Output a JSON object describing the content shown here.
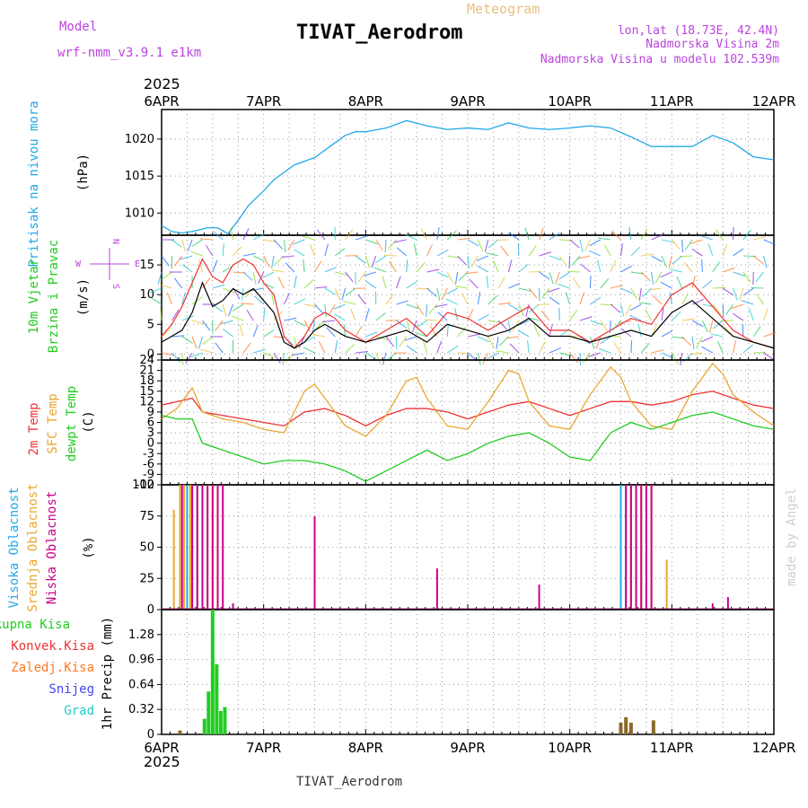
{
  "header": {
    "model_label": "Model",
    "model_name": "wrf-nmm_v3.9.1 e1km",
    "title": "TIVAT_Aerodrom",
    "subtitle": "Meteogram",
    "lonlat": "lon,lat (18.73E, 42.4N)",
    "elevation": "Nadmorska Visina 2m",
    "elevation_model": "Nadmorska Visina u modelu 102.539m",
    "footer": "TIVAT_Aerodrom",
    "credit": "made by Angel",
    "year": "2025"
  },
  "colors": {
    "pressure": "#22a8e8",
    "wind_speed": "#000000",
    "wind_gust": "#ee3333",
    "temp_2m": "#ee3333",
    "temp_sfc": "#e8a830",
    "temp_dew": "#22cc22",
    "cloud_high": "#22a8e8",
    "cloud_mid": "#e8a830",
    "cloud_low": "#cc0088",
    "precip_total": "#22cc22",
    "precip_conv": "#ee3333",
    "precip_ice": "#ff7722",
    "precip_snow": "#4444ee",
    "precip_grad": "#22cccc",
    "header_purple": "#bb44dd",
    "title": "#000000",
    "meteogram": "#e8c080"
  },
  "chart_data": [
    {
      "id": "pressure",
      "type": "line",
      "ylabel_parts": [
        "Pritisak na nivou mora",
        "(hPa)"
      ],
      "x_categories": [
        "6APR",
        "7APR",
        "8APR",
        "9APR",
        "10APR",
        "11APR",
        "12APR"
      ],
      "yticks": [
        1010,
        1015,
        1020
      ],
      "ylim": [
        1007,
        1024
      ],
      "grid": true,
      "series": [
        {
          "x": [
            0,
            0.1,
            0.2,
            0.3,
            0.45,
            0.55,
            0.65,
            0.75,
            0.85,
            1.0,
            1.1,
            1.2,
            1.3,
            1.4,
            1.5,
            1.6,
            1.7,
            1.8,
            1.9,
            2.0,
            2.2,
            2.4,
            2.6,
            2.8,
            3.0,
            3.2,
            3.4,
            3.6,
            3.8,
            4.0,
            4.2,
            4.4,
            4.6,
            4.8,
            5.0,
            5.2,
            5.4,
            5.6,
            5.8,
            6.0
          ],
          "values": [
            1008.3,
            1007.5,
            1007.3,
            1007.5,
            1008.0,
            1008.0,
            1007.2,
            1009.0,
            1011.0,
            1013.0,
            1014.5,
            1015.5,
            1016.5,
            1017.0,
            1017.5,
            1018.5,
            1019.5,
            1020.5,
            1021.0,
            1021.0,
            1021.5,
            1022.5,
            1021.8,
            1021.3,
            1021.5,
            1021.3,
            1022.2,
            1021.5,
            1021.3,
            1021.5,
            1021.8,
            1021.5,
            1020.3,
            1019.0,
            1019.0,
            1019.0,
            1020.5,
            1019.5,
            1017.6,
            1017.2
          ]
        }
      ]
    },
    {
      "id": "wind",
      "type": "line",
      "ylabel_parts": [
        "10m Vjetar",
        "Brzina i Pravac",
        "(m/s)"
      ],
      "compass": {
        "n": "N",
        "w": "W",
        "e": "E",
        "s": "S"
      },
      "x_categories": [
        "6APR",
        "7APR",
        "8APR",
        "9APR",
        "10APR",
        "11APR",
        "12APR"
      ],
      "yticks": [
        0,
        5,
        10,
        15
      ],
      "ylim": [
        -1,
        20
      ],
      "grid": true,
      "series": [
        {
          "name": "speed",
          "x": [
            0,
            0.1,
            0.2,
            0.3,
            0.4,
            0.5,
            0.6,
            0.7,
            0.8,
            0.9,
            1.0,
            1.1,
            1.2,
            1.3,
            1.4,
            1.5,
            1.6,
            1.7,
            1.8,
            2.0,
            2.2,
            2.4,
            2.6,
            2.8,
            3.0,
            3.2,
            3.4,
            3.6,
            3.8,
            4.0,
            4.2,
            4.4,
            4.6,
            4.8,
            5.0,
            5.2,
            5.4,
            5.6,
            5.8,
            6.0
          ],
          "values": [
            2,
            3,
            4,
            7,
            12,
            8,
            9,
            11,
            10,
            11,
            9,
            7,
            2,
            1,
            2,
            4,
            5,
            4,
            3,
            2,
            3,
            4,
            2,
            5,
            4,
            3,
            4,
            6,
            3,
            3,
            2,
            3,
            4,
            3,
            7,
            9,
            6,
            3,
            2,
            1
          ]
        },
        {
          "name": "gust",
          "x": [
            0,
            0.1,
            0.2,
            0.3,
            0.4,
            0.5,
            0.6,
            0.7,
            0.8,
            0.9,
            1.0,
            1.1,
            1.2,
            1.3,
            1.4,
            1.5,
            1.6,
            1.7,
            1.8,
            2.0,
            2.2,
            2.4,
            2.6,
            2.8,
            3.0,
            3.2,
            3.4,
            3.6,
            3.8,
            4.0,
            4.2,
            4.4,
            4.6,
            4.8,
            5.0,
            5.2,
            5.4,
            5.6,
            5.8,
            6.0
          ],
          "values": [
            3,
            5,
            8,
            12,
            16,
            13,
            12,
            15,
            16,
            15,
            12,
            10,
            3,
            1,
            3,
            6,
            7,
            6,
            4,
            2,
            4,
            6,
            3,
            7,
            6,
            4,
            6,
            8,
            4,
            4,
            2,
            4,
            6,
            5,
            10,
            12,
            8,
            4,
            2,
            1
          ]
        }
      ]
    },
    {
      "id": "temperature",
      "type": "line",
      "ylabel_parts": [
        "2m Temp",
        "SFC Temp",
        "dewpt Temp",
        "(C)"
      ],
      "x_categories": [
        "6APR",
        "7APR",
        "8APR",
        "9APR",
        "10APR",
        "11APR",
        "12APR"
      ],
      "yticks": [
        -12,
        -9,
        -6,
        -3,
        0,
        3,
        6,
        9,
        12,
        15,
        18,
        21,
        24
      ],
      "ylim": [
        -12,
        24
      ],
      "grid": true,
      "series": [
        {
          "name": "2m",
          "x": [
            0,
            0.15,
            0.3,
            0.4,
            0.6,
            0.8,
            1.0,
            1.2,
            1.4,
            1.6,
            1.8,
            2.0,
            2.2,
            2.4,
            2.6,
            2.8,
            3.0,
            3.2,
            3.4,
            3.6,
            3.8,
            4.0,
            4.2,
            4.4,
            4.6,
            4.8,
            5.0,
            5.2,
            5.4,
            5.6,
            5.8,
            6.0
          ],
          "values": [
            11,
            12,
            13,
            9,
            8,
            7,
            6,
            5,
            9,
            10,
            8,
            5,
            8,
            10,
            10,
            9,
            7,
            9,
            11,
            12,
            10,
            8,
            10,
            12,
            12,
            11,
            12,
            14,
            15,
            13,
            11,
            10
          ]
        },
        {
          "name": "sfc",
          "x": [
            0,
            0.15,
            0.3,
            0.4,
            0.6,
            0.8,
            1.0,
            1.2,
            1.4,
            1.5,
            1.6,
            1.8,
            2.0,
            2.2,
            2.4,
            2.5,
            2.6,
            2.8,
            3.0,
            3.2,
            3.4,
            3.5,
            3.6,
            3.8,
            4.0,
            4.2,
            4.4,
            4.5,
            4.6,
            4.8,
            5.0,
            5.2,
            5.4,
            5.5,
            5.6,
            5.8,
            6.0
          ],
          "values": [
            7,
            10,
            16,
            9,
            7,
            6,
            4,
            3,
            15,
            17,
            13,
            5,
            2,
            8,
            18,
            19,
            13,
            5,
            4,
            12,
            21,
            20,
            12,
            5,
            4,
            14,
            22,
            19,
            12,
            5,
            4,
            15,
            23,
            20,
            14,
            9,
            5
          ]
        },
        {
          "name": "dewpt",
          "x": [
            0,
            0.15,
            0.3,
            0.4,
            0.6,
            0.8,
            1.0,
            1.2,
            1.4,
            1.6,
            1.8,
            2.0,
            2.2,
            2.4,
            2.6,
            2.8,
            3.0,
            3.2,
            3.4,
            3.6,
            3.8,
            4.0,
            4.2,
            4.4,
            4.6,
            4.8,
            5.0,
            5.2,
            5.4,
            5.6,
            5.8,
            6.0
          ],
          "values": [
            8,
            7,
            7,
            0,
            -2,
            -4,
            -6,
            -5,
            -5,
            -6,
            -8,
            -11,
            -8,
            -5,
            -2,
            -5,
            -3,
            0,
            2,
            3,
            0,
            -4,
            -5,
            3,
            6,
            4,
            6,
            8,
            9,
            7,
            5,
            4
          ]
        }
      ]
    },
    {
      "id": "cloud",
      "type": "bar",
      "ylabel_parts": [
        "Visoka Oblacnost",
        "Srednja Oblacnost",
        "Niska Oblacnost",
        "(%)"
      ],
      "x_categories": [
        "6APR",
        "7APR",
        "8APR",
        "9APR",
        "10APR",
        "11APR",
        "12APR"
      ],
      "yticks": [
        0,
        25,
        50,
        75,
        100
      ],
      "ylim": [
        0,
        100
      ],
      "grid": true,
      "series": [
        {
          "name": "high",
          "x": [
            0.25,
            0.3,
            0.35,
            4.5,
            4.55,
            4.6,
            4.65
          ],
          "values": [
            100,
            100,
            100,
            100,
            100,
            100,
            100
          ]
        },
        {
          "name": "mid",
          "x": [
            0.12,
            0.18,
            0.22,
            0.28,
            0.4,
            0.45,
            0.5,
            0.55,
            4.55,
            4.6,
            4.7,
            4.8,
            4.95
          ],
          "values": [
            80,
            100,
            100,
            100,
            100,
            100,
            100,
            100,
            100,
            100,
            100,
            100,
            40
          ]
        },
        {
          "name": "low",
          "x": [
            0.2,
            0.3,
            0.35,
            0.4,
            0.45,
            0.5,
            0.55,
            0.6,
            0.7,
            1.5,
            2.7,
            3.7,
            4.55,
            4.6,
            4.65,
            4.7,
            4.75,
            4.8,
            5.4,
            5.55
          ],
          "values": [
            100,
            100,
            100,
            100,
            100,
            100,
            100,
            100,
            5,
            75,
            33,
            20,
            100,
            100,
            100,
            100,
            100,
            100,
            5,
            10
          ]
        }
      ]
    },
    {
      "id": "precip",
      "type": "bar",
      "ylabel": "1hr Precip (mm)",
      "legend": [
        "Ukupna Kisa",
        "Konvek.Kisa",
        "Zaledj.Kisa",
        "Snijeg",
        "Grad"
      ],
      "x_categories": [
        "6APR",
        "7APR",
        "8APR",
        "9APR",
        "10APR",
        "11APR",
        "12APR"
      ],
      "ytick_labels": [
        "0",
        "0.32",
        "0.64",
        "0.96",
        "1.28"
      ],
      "ylim": [
        0,
        1.6
      ],
      "grid": true,
      "series": [
        {
          "name": "total",
          "x": [
            0.42,
            0.46,
            0.5,
            0.54,
            0.58,
            0.62
          ],
          "values": [
            0.2,
            0.55,
            1.6,
            0.9,
            0.3,
            0.35
          ]
        },
        {
          "name": "conv",
          "x": [
            0.18,
            4.5,
            4.55,
            4.6,
            4.82
          ],
          "values": [
            0.05,
            0.15,
            0.22,
            0.15,
            0.18
          ]
        }
      ]
    }
  ]
}
